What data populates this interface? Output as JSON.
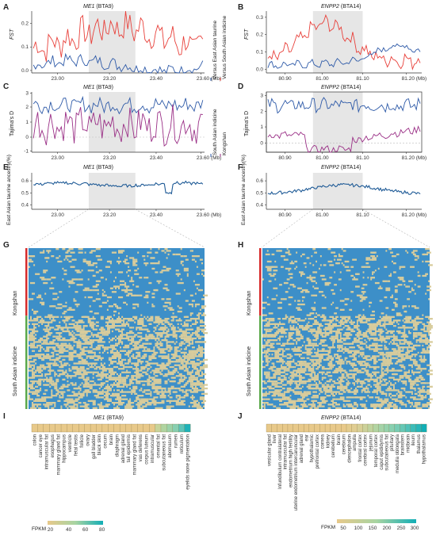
{
  "panels": {
    "A": {
      "label": "A",
      "title_gene": "ME1",
      "title_loc": " (BTA9)",
      "ylabel": "FST",
      "xticks": [
        "23.00",
        "23.20",
        "23.40",
        "23.60 (Mb)"
      ],
      "yticks": [
        "0.0",
        "0.1",
        "0.2"
      ],
      "legend": [
        "Versus East Asian taurine",
        "Versus South Asian indicine"
      ]
    },
    "B": {
      "label": "B",
      "title_gene": "ENPP2",
      "title_loc": " (BTA14)",
      "ylabel": "FST",
      "xticks": [
        "80.90",
        "81.00",
        "81.10",
        "81.20 (Mb)"
      ],
      "yticks": [
        "0.0",
        "0.1",
        "0.2",
        "0.3"
      ]
    },
    "C": {
      "label": "C",
      "title_gene": "ME1",
      "title_loc": " (BTA9)",
      "ylabel": "Tajima's D",
      "xticks": [
        "23.00",
        "23.20",
        "23.40",
        "23.60 (Mb)"
      ],
      "yticks": [
        "-1",
        "0",
        "1",
        "2",
        "3"
      ],
      "legend": [
        "South Asian indicine",
        "Kongshan"
      ]
    },
    "D": {
      "label": "D",
      "title_gene": "ENPP2",
      "title_loc": " (BTA14)",
      "ylabel": "Tajima's D",
      "xticks": [
        "80.90",
        "81.00",
        "81.10",
        "81.20 (Mb)"
      ],
      "yticks": [
        "0",
        "1",
        "2",
        "3"
      ]
    },
    "E": {
      "label": "E",
      "title_gene": "ME1",
      "title_loc": " (BTA9)",
      "ylabel": "East Asian taurine ancestry(%)",
      "xticks": [
        "23.00",
        "23.20",
        "23.40",
        "23.60 (Mb)"
      ],
      "yticks": [
        "0.4",
        "0.5",
        "0.6"
      ]
    },
    "F": {
      "label": "F",
      "title_gene": "ENPP2",
      "title_loc": " (BTA14)",
      "ylabel": "East Asian taurine ancestry(%)",
      "xticks": [
        "80.90",
        "81.00",
        "81.10",
        "81.20 (Mb)"
      ],
      "yticks": [
        "0.4",
        "0.5",
        "0.6"
      ]
    },
    "G": {
      "label": "G",
      "groups": [
        "Kongshan",
        "South Asian indicine"
      ]
    },
    "H": {
      "label": "H",
      "groups": [
        "Kongshan",
        "South Asian indicine"
      ]
    },
    "I": {
      "label": "I",
      "title_gene": "ME1",
      "title_loc": " (BTA9)",
      "legend_title": "FPKM",
      "legend_ticks": [
        "20",
        "40",
        "60",
        "80"
      ],
      "tissues": [
        "colon",
        "cancer eye",
        "intramuscular fat",
        "esophagus",
        "mammary gland fat",
        "hippocampus",
        "ventricle",
        "fetal testis",
        "follicle",
        "ovary",
        "gall bladder",
        "black skin",
        "cecum",
        "brain",
        "diaphragm",
        "adrenal gland",
        "tail epidermis",
        "mammary gland fat",
        "vas deferens",
        "corpus luteum",
        "intramuscular",
        "omental fat",
        "subcutaneous fat",
        "abomasum",
        "rumen",
        "reticulum",
        "eyelids none pigmentation"
      ],
      "tissue_colors": [
        "#e8c98a",
        "#e8c98a",
        "#e8c98a",
        "#e8c98a",
        "#e8c98a",
        "#e8c98a",
        "#e8c98a",
        "#e8c98a",
        "#e8c98a",
        "#e8c98a",
        "#e8c98a",
        "#e8c98a",
        "#e8c98a",
        "#e8c98a",
        "#e8c98a",
        "#e8c98a",
        "#e8c98a",
        "#e8c98a",
        "#e8c98a",
        "#e8c98a",
        "#e8c98a",
        "#c8d49a",
        "#b0d4a0",
        "#9cd2a8",
        "#88cfb0",
        "#5cc4b8",
        "#1fb2b8"
      ]
    },
    "J": {
      "label": "J",
      "title_gene": "ENPP2",
      "title_loc": " (BTA14)",
      "legend_title": "FPKM",
      "legend_ticks": [
        "50",
        "100",
        "150",
        "200",
        "250",
        "300"
      ],
      "tissues": [
        "vesicular gland",
        "liver",
        "Infundibulum contralateral",
        "intramuscular fat",
        "endometrium high fertility",
        "uterine endometrium intercaruncular",
        "adrenal gland",
        "ear",
        "hypothalamic",
        "prefrontal cortex",
        "cornea",
        "kidney",
        "cerebellum",
        "brain",
        "cerebrum",
        "diencephalon",
        "ampulla",
        "frontal cortex",
        "cerebral cortex",
        "jejunum",
        "temporal cortex",
        "caput epididymis",
        "subcutaneous fat",
        "pituitary",
        "medulla oblongata",
        "brainstem",
        "midbrain",
        "ileum",
        "thalamus",
        "hypothalamus"
      ],
      "tissue_colors": [
        "#e8c98a",
        "#e8c98a",
        "#e8c98a",
        "#e8c98a",
        "#e8c98a",
        "#e8c98a",
        "#e8c98a",
        "#e8c98a",
        "#e8c98a",
        "#e8c98a",
        "#e8c98a",
        "#e8c98a",
        "#e8c98a",
        "#e8c98a",
        "#e8c98a",
        "#e4cc8e",
        "#e0cd92",
        "#d8cf96",
        "#ccd19a",
        "#c0d39e",
        "#b2d4a2",
        "#a4d3a8",
        "#96d2ac",
        "#88d0b0",
        "#78ccb4",
        "#66c8b6",
        "#50c2b8",
        "#3cbcb8",
        "#28b6b8",
        "#12aeb6"
      ]
    }
  },
  "colors": {
    "red": "#e8403a",
    "blue": "#2e5aa8",
    "purple": "#9a2f86",
    "ancestry": "#1e5a96",
    "shade": "#e6e6e6",
    "heat_blue": "#3d8fc8",
    "heat_tan": "#d8cc9c",
    "kongshan_bar": "#d62b2b",
    "indicine_bar": "#5aa84a"
  }
}
